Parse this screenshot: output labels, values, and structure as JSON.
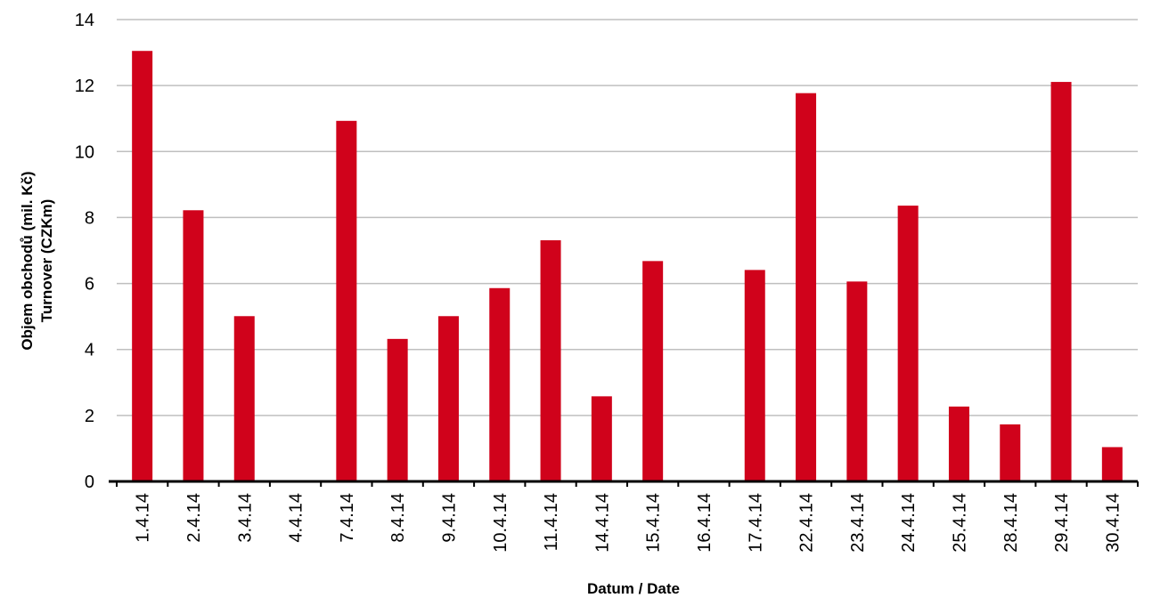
{
  "chart_data": {
    "type": "bar",
    "title": "",
    "xlabel": "Datum / Date",
    "ylabel_line1": "Objem obchodů (mil. Kč)",
    "ylabel_line2": "Turnover (CZKm)",
    "ylim": [
      0,
      14
    ],
    "yticks": [
      0,
      2,
      4,
      6,
      8,
      10,
      12,
      14
    ],
    "grid": true,
    "legend": "none",
    "bar_color": "#d0021b",
    "grid_color": "#bfbfbf",
    "categories": [
      "1.4.14",
      "2.4.14",
      "3.4.14",
      "4.4.14",
      "7.4.14",
      "8.4.14",
      "9.4.14",
      "10.4.14",
      "11.4.14",
      "14.4.14",
      "15.4.14",
      "16.4.14",
      "17.4.14",
      "22.4.14",
      "23.4.14",
      "24.4.14",
      "25.4.14",
      "28.4.14",
      "29.4.14",
      "30.4.14"
    ],
    "values": [
      13.05,
      8.22,
      5.01,
      0,
      10.93,
      4.32,
      5.01,
      5.86,
      7.31,
      2.58,
      6.68,
      0,
      6.41,
      11.77,
      6.06,
      8.36,
      2.27,
      1.73,
      12.11,
      1.04
    ]
  }
}
